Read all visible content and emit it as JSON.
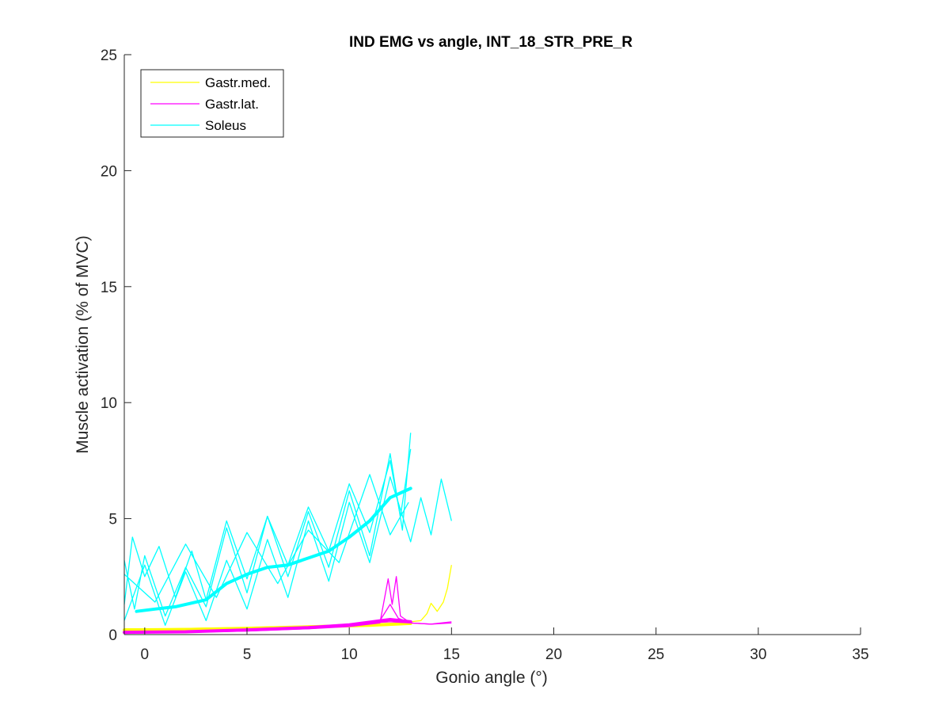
{
  "chart_data": {
    "type": "line",
    "title": "IND EMG vs angle, INT_18_STR_PRE_R",
    "xlabel": "Gonio angle (°)",
    "ylabel": "Muscle activation (% of MVC)",
    "xlim": [
      -1,
      35
    ],
    "ylim": [
      0,
      25
    ],
    "xticks": [
      0,
      5,
      10,
      15,
      20,
      25,
      30,
      35
    ],
    "yticks": [
      0,
      5,
      10,
      15,
      20,
      25
    ],
    "grid": false,
    "legend_position": "top-left",
    "series": [
      {
        "name": "Gastr.med.",
        "color": "#ffff00",
        "trials": [
          {
            "x": [
              -1,
              1,
              3,
              5,
              7,
              9,
              10,
              11,
              12,
              13,
              13.5,
              13.8,
              14,
              14.3,
              14.6,
              14.8,
              15
            ],
            "y": [
              0.25,
              0.25,
              0.28,
              0.3,
              0.35,
              0.4,
              0.45,
              0.5,
              0.55,
              0.55,
              0.6,
              0.9,
              1.35,
              1.0,
              1.4,
              2.0,
              3.0
            ]
          },
          {
            "x": [
              -1,
              2,
              5,
              8,
              10,
              12,
              13
            ],
            "y": [
              0.2,
              0.22,
              0.25,
              0.3,
              0.35,
              0.45,
              0.5
            ]
          }
        ],
        "mean": {
          "x": [
            -1,
            2,
            5,
            8,
            11,
            13
          ],
          "y": [
            0.2,
            0.22,
            0.27,
            0.33,
            0.4,
            0.48
          ]
        }
      },
      {
        "name": "Gastr.lat.",
        "color": "#ff00ff",
        "trials": [
          {
            "x": [
              -1,
              2,
              5,
              8,
              10,
              11.5,
              11.9,
              12.1,
              12.3,
              12.5,
              13,
              14,
              15
            ],
            "y": [
              0.08,
              0.1,
              0.15,
              0.25,
              0.35,
              0.5,
              2.4,
              1.3,
              2.5,
              0.8,
              0.5,
              0.45,
              0.5
            ]
          },
          {
            "x": [
              -1,
              2,
              5,
              8,
              10,
              11.5,
              12,
              12.4,
              13,
              14,
              15
            ],
            "y": [
              0.1,
              0.12,
              0.18,
              0.3,
              0.4,
              0.6,
              1.3,
              0.7,
              0.5,
              0.45,
              0.55
            ]
          },
          {
            "x": [
              -1,
              2,
              5,
              8,
              10,
              12,
              13
            ],
            "y": [
              0.05,
              0.1,
              0.2,
              0.3,
              0.45,
              0.55,
              0.5
            ]
          }
        ],
        "mean": {
          "x": [
            -1,
            2,
            5,
            8,
            10,
            12,
            13
          ],
          "y": [
            0.1,
            0.12,
            0.2,
            0.3,
            0.42,
            0.65,
            0.55
          ]
        }
      },
      {
        "name": "Soleus",
        "color": "#00ffff",
        "trials": [
          {
            "x": [
              -1,
              -0.6,
              0,
              0.7,
              1.5,
              2.3,
              3,
              4,
              5,
              6,
              7,
              8,
              9,
              10,
              11,
              12,
              12.5,
              13
            ],
            "y": [
              1.3,
              4.2,
              2.5,
              3.8,
              1.6,
              3.6,
              1.5,
              4.9,
              2.4,
              5.1,
              3.0,
              5.5,
              3.6,
              6.5,
              4.4,
              7.5,
              5.1,
              8.0
            ]
          },
          {
            "x": [
              -1,
              -0.5,
              0,
              1,
              2,
              3,
              4,
              5,
              6,
              7,
              8,
              9,
              10,
              11,
              12,
              12.6,
              13
            ],
            "y": [
              3.2,
              1.1,
              3.4,
              0.8,
              2.9,
              1.2,
              4.6,
              1.8,
              5.1,
              2.5,
              5.3,
              2.9,
              6.2,
              3.4,
              7.8,
              4.5,
              8.7
            ]
          },
          {
            "x": [
              -1,
              0,
              1,
              2,
              3,
              4,
              5,
              6,
              7,
              8,
              9,
              10,
              11,
              12,
              13,
              13.5,
              14,
              14.5,
              15
            ],
            "y": [
              0.6,
              3.0,
              0.4,
              2.7,
              0.6,
              3.2,
              1.1,
              4.1,
              1.6,
              4.9,
              2.3,
              5.7,
              3.1,
              6.8,
              4.0,
              5.9,
              4.3,
              6.7,
              4.9
            ]
          },
          {
            "x": [
              -1,
              0.5,
              2,
              3.5,
              5,
              6.5,
              8,
              9.5,
              11,
              12,
              12.9
            ],
            "y": [
              2.6,
              1.4,
              3.9,
              1.6,
              4.4,
              2.2,
              4.5,
              3.1,
              6.9,
              4.3,
              5.7
            ]
          }
        ],
        "mean": {
          "x": [
            -0.4,
            0.5,
            1.5,
            3,
            4,
            5,
            6,
            7,
            8,
            9,
            10,
            11,
            12,
            13
          ],
          "y": [
            1.0,
            1.1,
            1.2,
            1.5,
            2.2,
            2.6,
            2.9,
            3.0,
            3.3,
            3.6,
            4.2,
            4.9,
            5.9,
            6.3
          ]
        }
      }
    ]
  }
}
